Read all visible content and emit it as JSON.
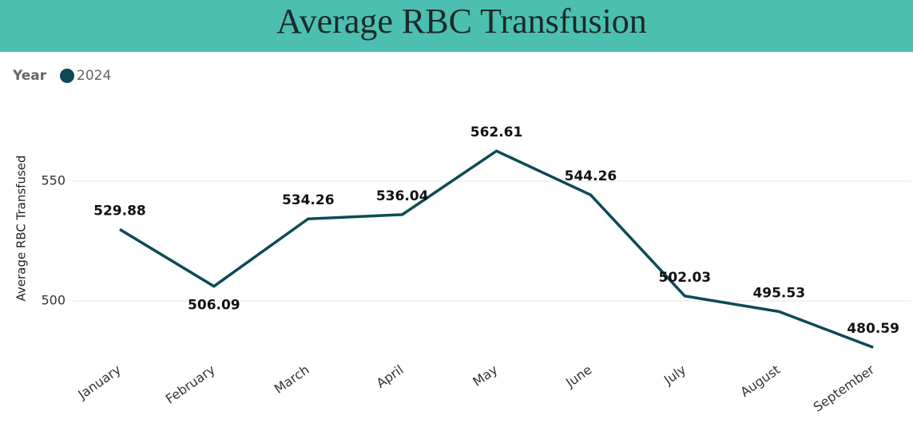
{
  "chart_data": {
    "type": "line",
    "title": "Average RBC Transfusion",
    "legend_title": "Year",
    "y_label": "Average RBC Transfused",
    "categories": [
      "January",
      "February",
      "March",
      "April",
      "May",
      "June",
      "July",
      "August",
      "September"
    ],
    "series": [
      {
        "name": "2024",
        "color": "#0d4a55",
        "values": [
          529.88,
          506.09,
          534.26,
          536.04,
          562.61,
          544.26,
          502.03,
          495.53,
          480.59
        ]
      }
    ],
    "ylim": [
      475,
      575
    ],
    "yticks": [
      500,
      550
    ],
    "grid": true
  }
}
